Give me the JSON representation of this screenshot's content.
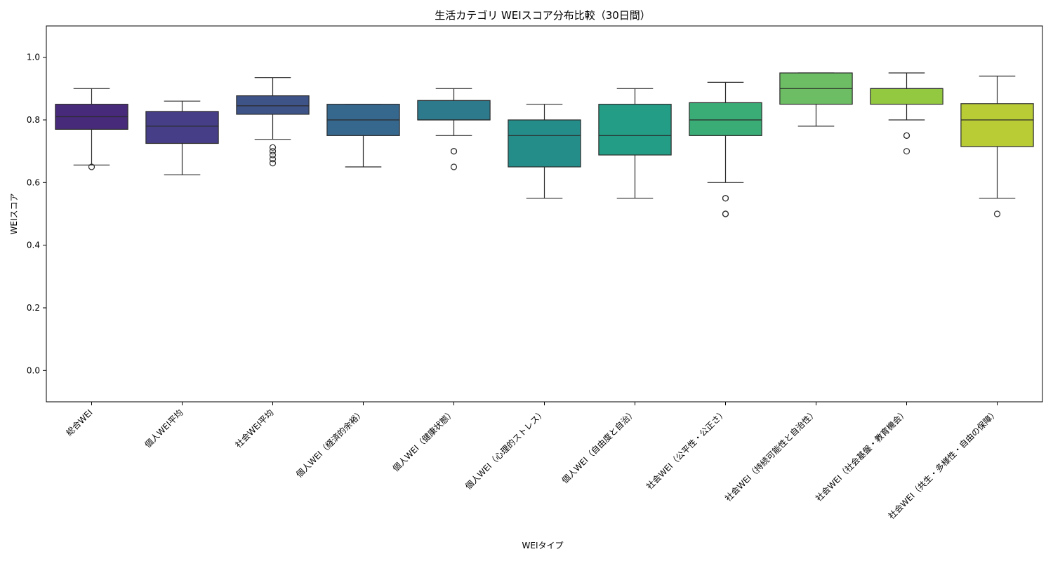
{
  "chart_data": {
    "type": "box",
    "title": "生活カテゴリ WEIスコア分布比較（30日間）",
    "xlabel": "WEIタイプ",
    "ylabel": "WEIスコア",
    "ylim": [
      -0.1,
      1.1
    ],
    "yticks": [
      0.0,
      0.2,
      0.4,
      0.6,
      0.8,
      1.0
    ],
    "grid": false,
    "legend": "none",
    "categories": [
      "総合WEI",
      "個人WEI平均",
      "社会WEI平均",
      "個人WEI（経済的余裕）",
      "個人WEI（健康状態）",
      "個人WEI（心理的ストレス）",
      "個人WEI（自由度と自治）",
      "社会WEI（公平性・公正さ）",
      "社会WEI（持続可能性と自治性）",
      "社会WEI（社会基盤・教育機会）",
      "社会WEI（共生・多様性・自由の保障）"
    ],
    "boxes": [
      {
        "whislo": 0.656,
        "q1": 0.77,
        "med": 0.81,
        "q3": 0.85,
        "whishi": 0.9,
        "fliers": [
          0.65
        ],
        "color": "#472a7a"
      },
      {
        "whislo": 0.625,
        "q1": 0.725,
        "med": 0.78,
        "q3": 0.827,
        "whishi": 0.86,
        "fliers": [],
        "color": "#463f88"
      },
      {
        "whislo": 0.738,
        "q1": 0.818,
        "med": 0.845,
        "q3": 0.877,
        "whishi": 0.935,
        "fliers": [
          0.712,
          0.7,
          0.688,
          0.675,
          0.662
        ],
        "color": "#3e5489"
      },
      {
        "whislo": 0.65,
        "q1": 0.75,
        "med": 0.8,
        "q3": 0.85,
        "whishi": 0.85,
        "fliers": [],
        "color": "#36678d"
      },
      {
        "whislo": 0.75,
        "q1": 0.8,
        "med": 0.8,
        "q3": 0.862,
        "whishi": 0.9,
        "fliers": [
          0.7,
          0.7,
          0.65
        ],
        "color": "#2d7a8c"
      },
      {
        "whislo": 0.55,
        "q1": 0.65,
        "med": 0.75,
        "q3": 0.8,
        "whishi": 0.85,
        "fliers": [],
        "color": "#248c89"
      },
      {
        "whislo": 0.55,
        "q1": 0.688,
        "med": 0.75,
        "q3": 0.85,
        "whishi": 0.9,
        "fliers": [],
        "color": "#239d85"
      },
      {
        "whislo": 0.6,
        "q1": 0.75,
        "med": 0.8,
        "q3": 0.855,
        "whishi": 0.92,
        "fliers": [
          0.55,
          0.55,
          0.5,
          0.5
        ],
        "color": "#3aad76"
      },
      {
        "whislo": 0.78,
        "q1": 0.85,
        "med": 0.9,
        "q3": 0.95,
        "whishi": 0.95,
        "fliers": [],
        "color": "#6cbd63"
      },
      {
        "whislo": 0.8,
        "q1": 0.85,
        "med": 0.9,
        "q3": 0.9,
        "whishi": 0.95,
        "fliers": [
          0.75,
          0.75,
          0.7
        ],
        "color": "#93c841"
      },
      {
        "whislo": 0.55,
        "q1": 0.715,
        "med": 0.8,
        "q3": 0.852,
        "whishi": 0.94,
        "fliers": [
          0.5
        ],
        "color": "#b9cc35"
      }
    ]
  }
}
